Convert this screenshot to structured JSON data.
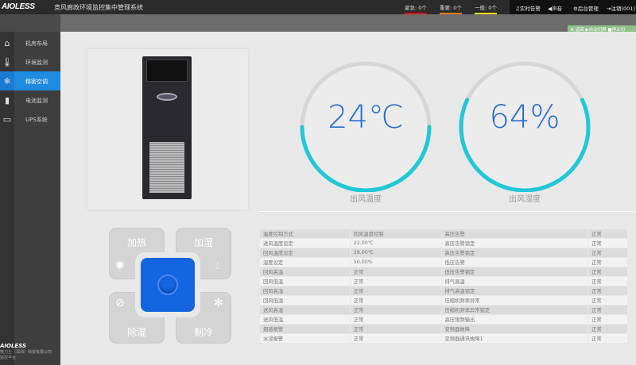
{
  "header": {
    "logo": "AIOLESS",
    "title": "竞风廊政环境监控集中管理系统",
    "alarms": [
      {
        "label": "紧急: 0个",
        "color": "#e01010"
      },
      {
        "label": "重要: 0个",
        "color": "#f07a10"
      },
      {
        "label": "一般: 0个",
        "color": "#f0e010"
      }
    ],
    "actions": [
      "♫实时告警",
      "◀声音",
      "⚙后台管理",
      "⇥注销(001)"
    ]
  },
  "toolbar": {
    "items": [
      "返回",
      "▶自动切屏",
      "■停止切"
    ]
  },
  "sidebar": {
    "items": [
      {
        "label": "机房布局",
        "icon": "home-icon"
      },
      {
        "label": "环境监测",
        "icon": "thermometer-icon"
      },
      {
        "label": "精密空调",
        "icon": "snowflake-icon",
        "active": true
      },
      {
        "label": "电池监测",
        "icon": "battery-icon"
      },
      {
        "label": "UPS系统",
        "icon": "ups-icon"
      }
    ],
    "footer_logo": "AIOLESS",
    "footer_text": "奥力士（深圳）科技有限公司",
    "footer_text2": "监控平台"
  },
  "gauges": [
    {
      "value": "24℃",
      "label": "出风温度",
      "fraction": 0.5,
      "color": "#20c8d8"
    },
    {
      "value": "64%",
      "label": "出风湿度",
      "fraction": 0.64,
      "color": "#20c8d8"
    }
  ],
  "controls": {
    "heat": "加热",
    "humidify": "加湿",
    "dehumidify": "除湿",
    "cool": "制冷",
    "accent": "#1565e0"
  },
  "status_table": [
    [
      "温度控制方式",
      "回风温度控制",
      "高压告警",
      "正常"
    ],
    [
      "送风温度设定",
      "22.00℃",
      "高压告警锁定",
      "正常"
    ],
    [
      "回风温度设定",
      "28.00℃",
      "高压告警锁定",
      "正常"
    ],
    [
      "湿度设定",
      "50.00%",
      "低压告警",
      "正常"
    ],
    [
      "回风高温",
      "正常",
      "低压告警锁定",
      "正常"
    ],
    [
      "回风低温",
      "正常",
      "排气高温",
      "正常"
    ],
    [
      "回风高湿",
      "正常",
      "排气高温锁定",
      "正常"
    ],
    [
      "回风低湿",
      "正常",
      "压缩机频率异常",
      "正常"
    ],
    [
      "送风高温",
      "正常",
      "压缩机频率异常锁定",
      "正常"
    ],
    [
      "送风低温",
      "正常",
      "高压限频输出",
      "正常"
    ],
    [
      "烟感报警",
      "正常",
      "变频器故障",
      "正常"
    ],
    [
      "水浸报警",
      "正常",
      "变频器通讯故障1",
      "正常"
    ]
  ]
}
